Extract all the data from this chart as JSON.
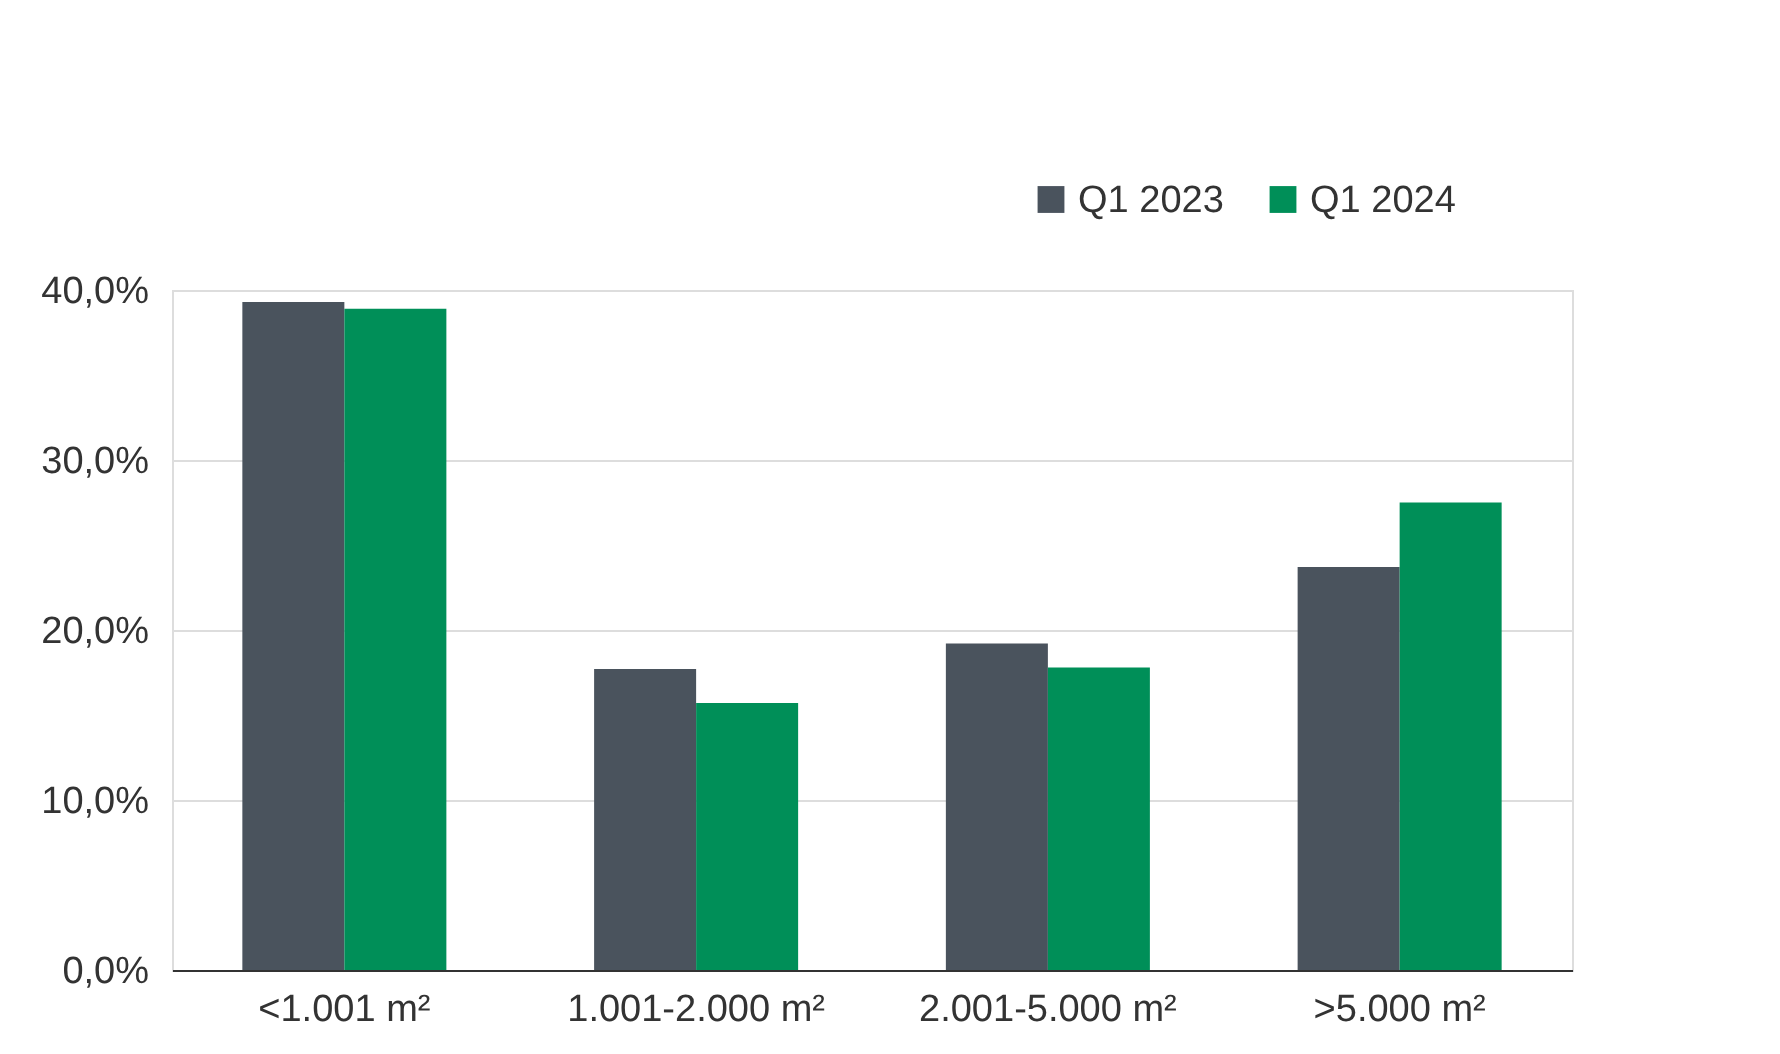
{
  "chart_data": {
    "type": "bar",
    "categories": [
      "<1.001 m²",
      "1.001-2.000 m²",
      "2.001-5.000 m²",
      ">5.000 m²"
    ],
    "series": [
      {
        "name": "Q1 2023",
        "color": "#4a535d",
        "values": [
          39.3,
          17.7,
          19.2,
          23.7
        ]
      },
      {
        "name": "Q1 2024",
        "color": "#008f58",
        "values": [
          38.9,
          15.7,
          17.8,
          27.5
        ]
      }
    ],
    "ylim": [
      0,
      40
    ],
    "yticks": [
      {
        "value": 0,
        "label": "0,0%"
      },
      {
        "value": 10,
        "label": "10,0%"
      },
      {
        "value": 20,
        "label": "20,0%"
      },
      {
        "value": 30,
        "label": "30,0%"
      },
      {
        "value": 40,
        "label": "40,0%"
      }
    ],
    "grid": "y",
    "legend": "top right"
  }
}
